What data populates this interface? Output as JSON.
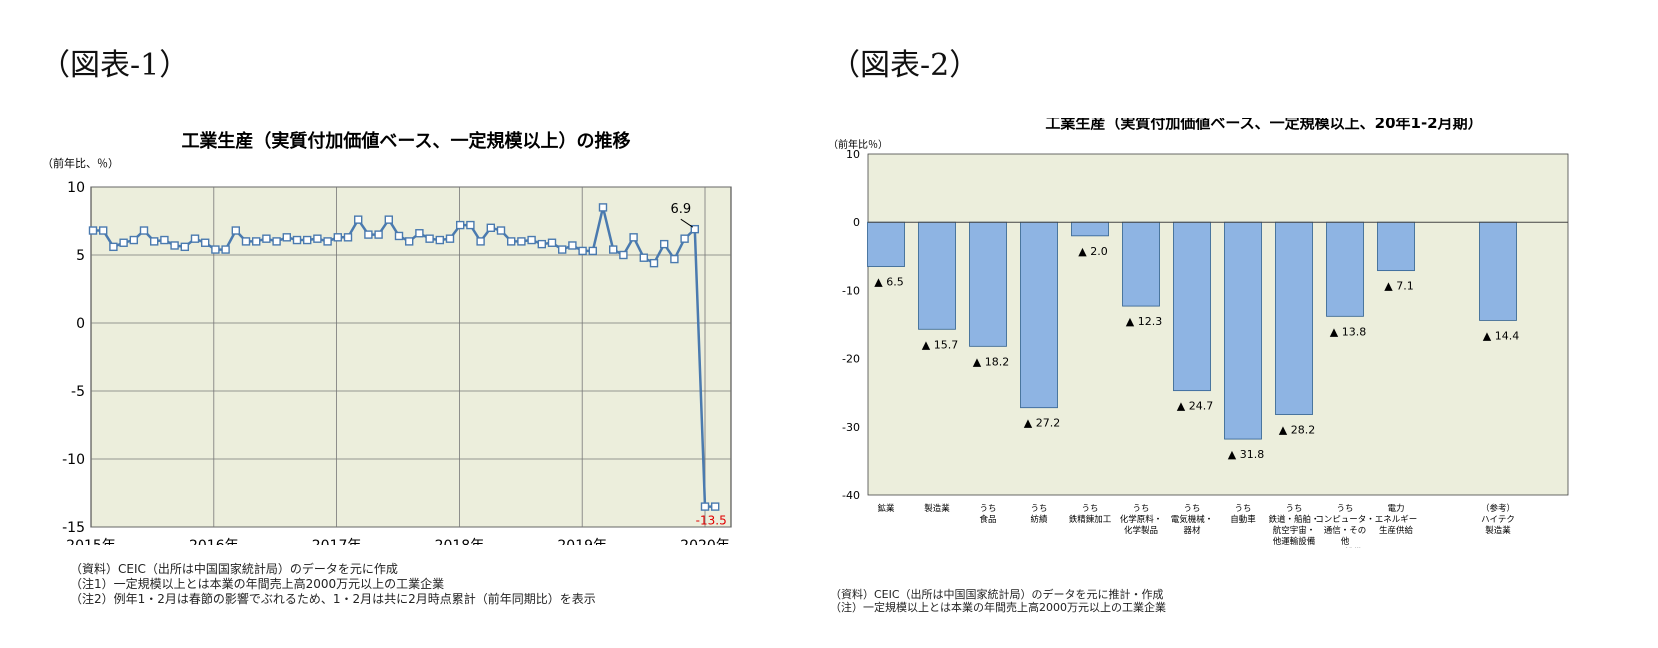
{
  "panels": [
    {
      "label": "（図表-1）"
    },
    {
      "label": "（図表-2）"
    }
  ],
  "colors": {
    "plot_bg": "#ECEEDC",
    "line": "#4A7AAF",
    "bar": "#8EB4E3",
    "bar_edge": "#2F5F8E",
    "neg_label": "#E00000"
  },
  "chart_data": [
    {
      "type": "line",
      "title": "工業生産（実質付加価値ベース、一定規模以上）の推移",
      "ylabel": "（前年比、％）",
      "ylim": [
        -15,
        10
      ],
      "yticks": [
        10,
        5,
        0,
        -5,
        -10,
        -15
      ],
      "xlabels": [
        "2015年",
        "2016年",
        "2017年",
        "2018年",
        "2019年",
        "2020年"
      ],
      "series": [
        {
          "values": [
            6.8,
            6.8,
            5.6,
            5.9,
            6.1,
            6.8,
            6.0,
            6.1,
            5.7,
            5.6,
            6.2,
            5.9,
            5.4,
            5.4,
            6.8,
            6.0,
            6.0,
            6.2,
            6.0,
            6.3,
            6.1,
            6.1,
            6.2,
            6.0,
            6.3,
            6.3,
            7.6,
            6.5,
            6.5,
            7.6,
            6.4,
            6.0,
            6.6,
            6.2,
            6.1,
            6.2,
            7.2,
            7.2,
            6.0,
            7.0,
            6.8,
            6.0,
            6.0,
            6.1,
            5.8,
            5.9,
            5.4,
            5.7,
            5.3,
            5.3,
            8.5,
            5.4,
            5.0,
            6.3,
            4.8,
            4.4,
            5.8,
            4.7,
            6.2,
            6.9,
            -13.5,
            -13.5
          ]
        }
      ],
      "annotations": [
        {
          "text": "6.9"
        },
        {
          "text": "-13.5"
        }
      ]
    },
    {
      "type": "bar",
      "title": "工業生産（実質付加価値ベース、一定規模以上、20年1-2月期）",
      "ylabel": "（前年比％）",
      "ylim": [
        -40,
        10
      ],
      "yticks": [
        10,
        0,
        -10,
        -20,
        -30,
        -40
      ],
      "categories": [
        [
          "鉱業"
        ],
        [
          "製造業"
        ],
        [
          "うち",
          "食品"
        ],
        [
          "うち",
          "紡績"
        ],
        [
          "うち",
          "鉄精錬加工"
        ],
        [
          "うち",
          "化学原料・",
          "化学製品"
        ],
        [
          "うち",
          "電気機械・",
          "器材"
        ],
        [
          "うち",
          "自動車"
        ],
        [
          "うち",
          "鉄道・船舶・",
          "航空宇宙・",
          "他運輸設備"
        ],
        [
          "うち",
          "コンピュータ・",
          "通信・その",
          "他",
          "電子設備"
        ],
        [
          "電力",
          "エネルギー",
          "生産供給"
        ],
        [
          "（参考）",
          "ハイテク",
          "製造業"
        ]
      ],
      "values": [
        -6.5,
        -15.7,
        -18.2,
        -27.2,
        -2.0,
        -12.3,
        -24.7,
        -31.8,
        -28.2,
        -13.8,
        -7.1,
        -14.4
      ],
      "data_labels": [
        "▲ 6.5",
        "▲ 15.7",
        "▲ 18.2",
        "▲ 27.2",
        "▲ 2.0",
        "▲ 12.3",
        "▲ 24.7",
        "▲ 31.8",
        "▲ 28.2",
        "▲ 13.8",
        "▲ 7.1",
        "▲ 14.4"
      ]
    }
  ],
  "notes1": [
    "（資料）CEIC（出所は中国国家統計局）のデータを元に作成",
    "（注1）一定規模以上とは本業の年間売上高2000万元以上の工業企業",
    "（注2）例年1・2月は春節の影響でぶれるため、1・2月は共に2月時点累計（前年同期比）を表示"
  ],
  "notes2": [
    "（資料）CEIC（出所は中国国家統計局）のデータを元に推計・作成",
    "（注）一定規模以上とは本業の年間売上高2000万元以上の工業企業"
  ]
}
